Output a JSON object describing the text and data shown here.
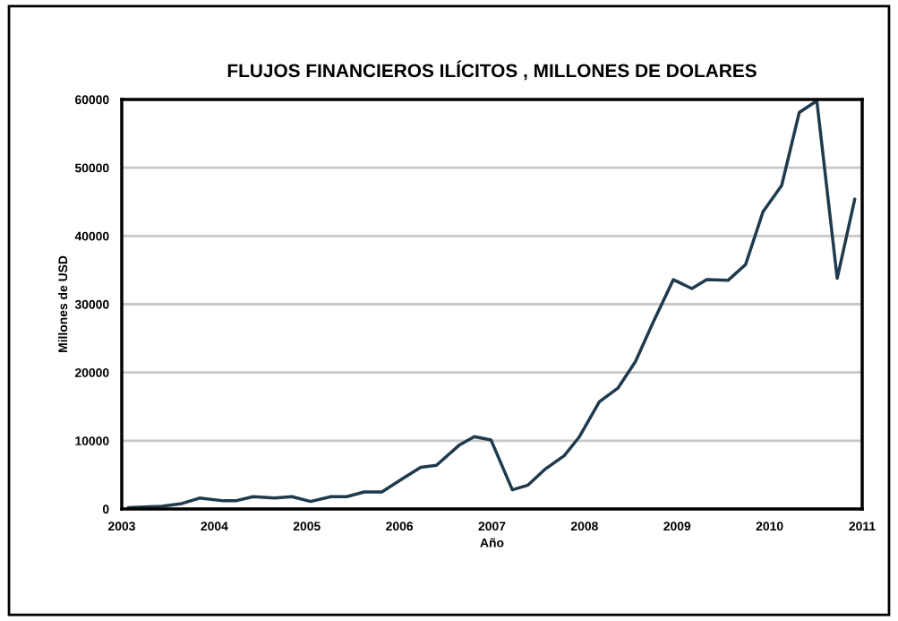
{
  "chart_data": {
    "type": "line",
    "title": "FLUJOS FINANCIEROS ILÍCITOS , MILLONES DE DOLARES",
    "xlabel": "Año",
    "ylabel": "Millones de USD",
    "xlim": [
      2003,
      2011
    ],
    "xticks": [
      2003,
      2004,
      2005,
      2006,
      2007,
      2008,
      2009,
      2010,
      2011
    ],
    "ylim": [
      0,
      60000
    ],
    "yticks": [
      0,
      10000,
      20000,
      30000,
      40000,
      50000,
      60000
    ],
    "grid": "y",
    "legend": false,
    "marker": "none",
    "line_style": "solid",
    "series": [
      {
        "color": "#1e3a4c",
        "x": [
          2003.07,
          2003.43,
          2003.65,
          2003.84,
          2004.1,
          2004.23,
          2004.42,
          2004.65,
          2004.84,
          2005.04,
          2005.26,
          2005.43,
          2005.62,
          2005.81,
          2006.04,
          2006.23,
          2006.4,
          2006.65,
          2006.81,
          2006.99,
          2007.22,
          2007.39,
          2007.58,
          2007.78,
          2007.94,
          2008.16,
          2008.36,
          2008.55,
          2008.74,
          2008.96,
          2009.16,
          2009.32,
          2009.55,
          2009.74,
          2009.93,
          2010.13,
          2010.32,
          2010.51,
          2010.73,
          2010.92
        ],
        "values": [
          200,
          400,
          800,
          1600,
          1200,
          1200,
          1800,
          1600,
          1800,
          1100,
          1800,
          1800,
          2500,
          2500,
          4500,
          6100,
          6400,
          9400,
          10600,
          10100,
          2800,
          3500,
          5900,
          7800,
          10500,
          15700,
          17700,
          21600,
          27300,
          33600,
          32300,
          33600,
          33500,
          35800,
          43600,
          47400,
          58100,
          59800,
          33800,
          45400
        ]
      }
    ]
  }
}
